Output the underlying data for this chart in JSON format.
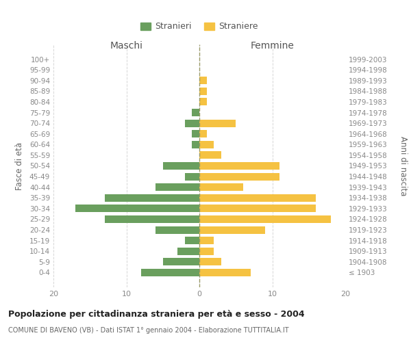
{
  "age_groups": [
    "100+",
    "95-99",
    "90-94",
    "85-89",
    "80-84",
    "75-79",
    "70-74",
    "65-69",
    "60-64",
    "55-59",
    "50-54",
    "45-49",
    "40-44",
    "35-39",
    "30-34",
    "25-29",
    "20-24",
    "15-19",
    "10-14",
    "5-9",
    "0-4"
  ],
  "birth_years": [
    "≤ 1903",
    "1904-1908",
    "1909-1913",
    "1914-1918",
    "1919-1923",
    "1924-1928",
    "1929-1933",
    "1934-1938",
    "1939-1943",
    "1944-1948",
    "1949-1953",
    "1954-1958",
    "1959-1963",
    "1964-1968",
    "1969-1973",
    "1974-1978",
    "1979-1983",
    "1984-1988",
    "1989-1993",
    "1994-1998",
    "1999-2003"
  ],
  "maschi": [
    0,
    0,
    0,
    0,
    0,
    1,
    2,
    1,
    1,
    0,
    5,
    2,
    6,
    13,
    17,
    13,
    6,
    2,
    3,
    5,
    8
  ],
  "femmine": [
    0,
    0,
    1,
    1,
    1,
    0,
    5,
    1,
    2,
    3,
    11,
    11,
    6,
    16,
    16,
    18,
    9,
    2,
    2,
    3,
    7
  ],
  "maschi_color": "#6a9f5e",
  "femmine_color": "#f5c242",
  "background_color": "#ffffff",
  "grid_color": "#cccccc",
  "title": "Popolazione per cittadinanza straniera per età e sesso - 2004",
  "subtitle": "COMUNE DI BAVENO (VB) - Dati ISTAT 1° gennaio 2004 - Elaborazione TUTTITALIA.IT",
  "ylabel_left": "Fasce di età",
  "ylabel_right": "Anni di nascita",
  "xlabel_maschi": "Maschi",
  "xlabel_femmine": "Femmine",
  "legend_maschi": "Stranieri",
  "legend_femmine": "Straniere",
  "xlim": 20
}
